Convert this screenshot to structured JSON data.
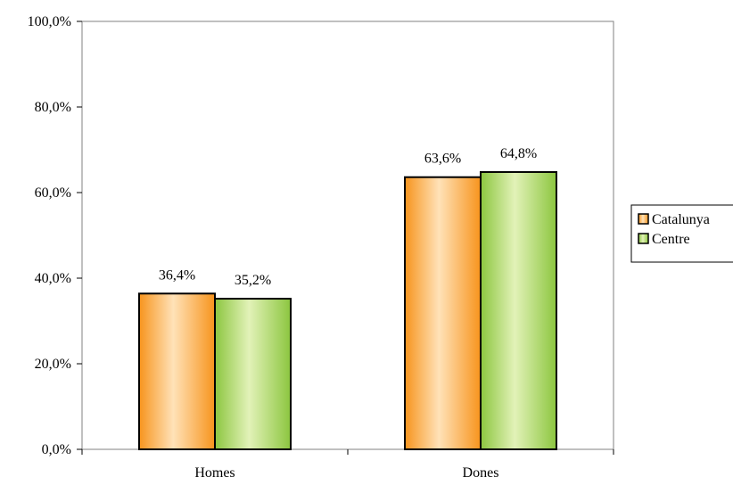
{
  "chart_data": {
    "type": "bar",
    "categories": [
      "Homes",
      "Dones"
    ],
    "series": [
      {
        "name": "Catalunya",
        "values": [
          36.4,
          63.6
        ],
        "labels": [
          "36,4%",
          "63,6%"
        ]
      },
      {
        "name": "Centre",
        "values": [
          35.2,
          64.8
        ],
        "labels": [
          "35,2%",
          "64,8%"
        ]
      }
    ],
    "ylim": [
      0,
      100
    ],
    "yticks": [
      0,
      20,
      40,
      60,
      80,
      100
    ],
    "ytick_labels": [
      "0,0%",
      "20,0%",
      "40,0%",
      "60,0%",
      "80,0%",
      "100,0%"
    ],
    "grid": false,
    "legend": "right",
    "colors": {
      "Catalunya": {
        "edge": "#f7941d",
        "center": "#ffe2b8"
      },
      "Centre": {
        "edge": "#8cc63f",
        "center": "#e2f2b8"
      }
    }
  }
}
